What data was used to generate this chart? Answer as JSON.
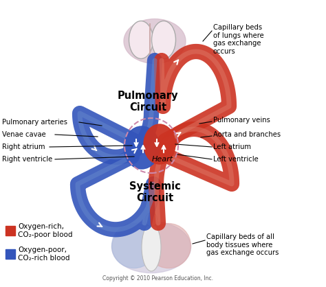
{
  "bg_color": "#ffffff",
  "red_color": "#cc3322",
  "blue_color": "#3355bb",
  "red_light": "#dd7766",
  "blue_light": "#6688cc",
  "pink_mesh": "#ddaaaa",
  "blue_mesh": "#aabbdd",
  "labels": {
    "pulmonary_circuit": "Pulmonary\nCircuit",
    "systemic_circuit": "Systemic\nCircuit",
    "heart": "Heart",
    "pulmonary_arteries": "Pulmonary arteries",
    "venae_cavae": "Venae cavae",
    "right_atrium": "Right atrium",
    "right_ventricle": "Right ventricle",
    "pulmonary_veins": "Pulmonary veins",
    "aorta": "Aorta and branches",
    "left_atrium": "Left atrium",
    "left_ventricle": "Left ventricle",
    "capillary_lungs": "Capillary beds\nof lungs where\ngas exchange\noccurs",
    "capillary_body": "Capillary beds of all\nbody tissues where\ngas exchange occurs",
    "legend_rich": "Oxygen-rich,\nCO₂-poor blood",
    "legend_poor": "Oxygen-poor,\nCO₂-rich blood",
    "copyright": "Copyright © 2010 Pearson Education, Inc."
  },
  "figsize": [
    4.74,
    4.18
  ],
  "dpi": 100
}
